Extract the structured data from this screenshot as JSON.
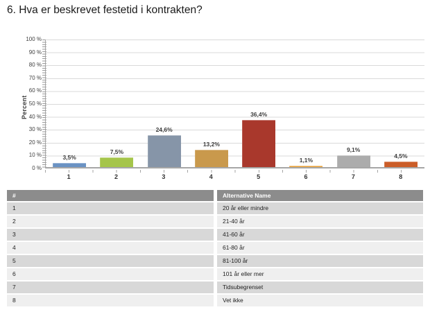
{
  "page": {
    "title": "6. Hva er beskrevet festetid i kontrakten?"
  },
  "chart_data": {
    "type": "bar",
    "title": "6. Hva er beskrevet festetid i kontrakten?",
    "xlabel": "",
    "ylabel": "Percent",
    "ylim": [
      0,
      100
    ],
    "grid": true,
    "legend": false,
    "categories": [
      "1",
      "2",
      "3",
      "4",
      "5",
      "6",
      "7",
      "8"
    ],
    "values": [
      3.5,
      7.5,
      24.6,
      13.2,
      36.4,
      1.1,
      9.1,
      4.5
    ],
    "value_labels": [
      "3,5%",
      "7,5%",
      "24,6%",
      "13,2%",
      "36,4%",
      "1,1%",
      "9,1%",
      "4,5%"
    ],
    "bar_colors": [
      "#6A92C3",
      "#A5C54A",
      "#8695A8",
      "#C9994C",
      "#A9382C",
      "#E9A23B",
      "#ACACAC",
      "#CB5D28"
    ],
    "yticks": [
      "100 %",
      "90 %",
      "80 %",
      "70 %",
      "60 %",
      "50 %",
      "40 %",
      "30 %",
      "20 %",
      "10 %",
      "0 %"
    ]
  },
  "table": {
    "headers": [
      "#",
      "Alternative Name"
    ],
    "rows": [
      {
        "id": "1",
        "name": "20 år eller mindre"
      },
      {
        "id": "2",
        "name": "21-40 år"
      },
      {
        "id": "3",
        "name": "41-60 år"
      },
      {
        "id": "4",
        "name": "61-80 år"
      },
      {
        "id": "5",
        "name": "81-100 år"
      },
      {
        "id": "6",
        "name": "101 år eller mer"
      },
      {
        "id": "7",
        "name": "Tidsubegrenset"
      },
      {
        "id": "8",
        "name": "Vet ikke"
      }
    ]
  },
  "colors": {
    "gridline": "#D9D9D9",
    "axis": "#A6A6A6",
    "table_header_bg": "#8C8C8C",
    "row_odd_bg": "#D8D8D8",
    "row_even_bg": "#EFEFEF"
  }
}
